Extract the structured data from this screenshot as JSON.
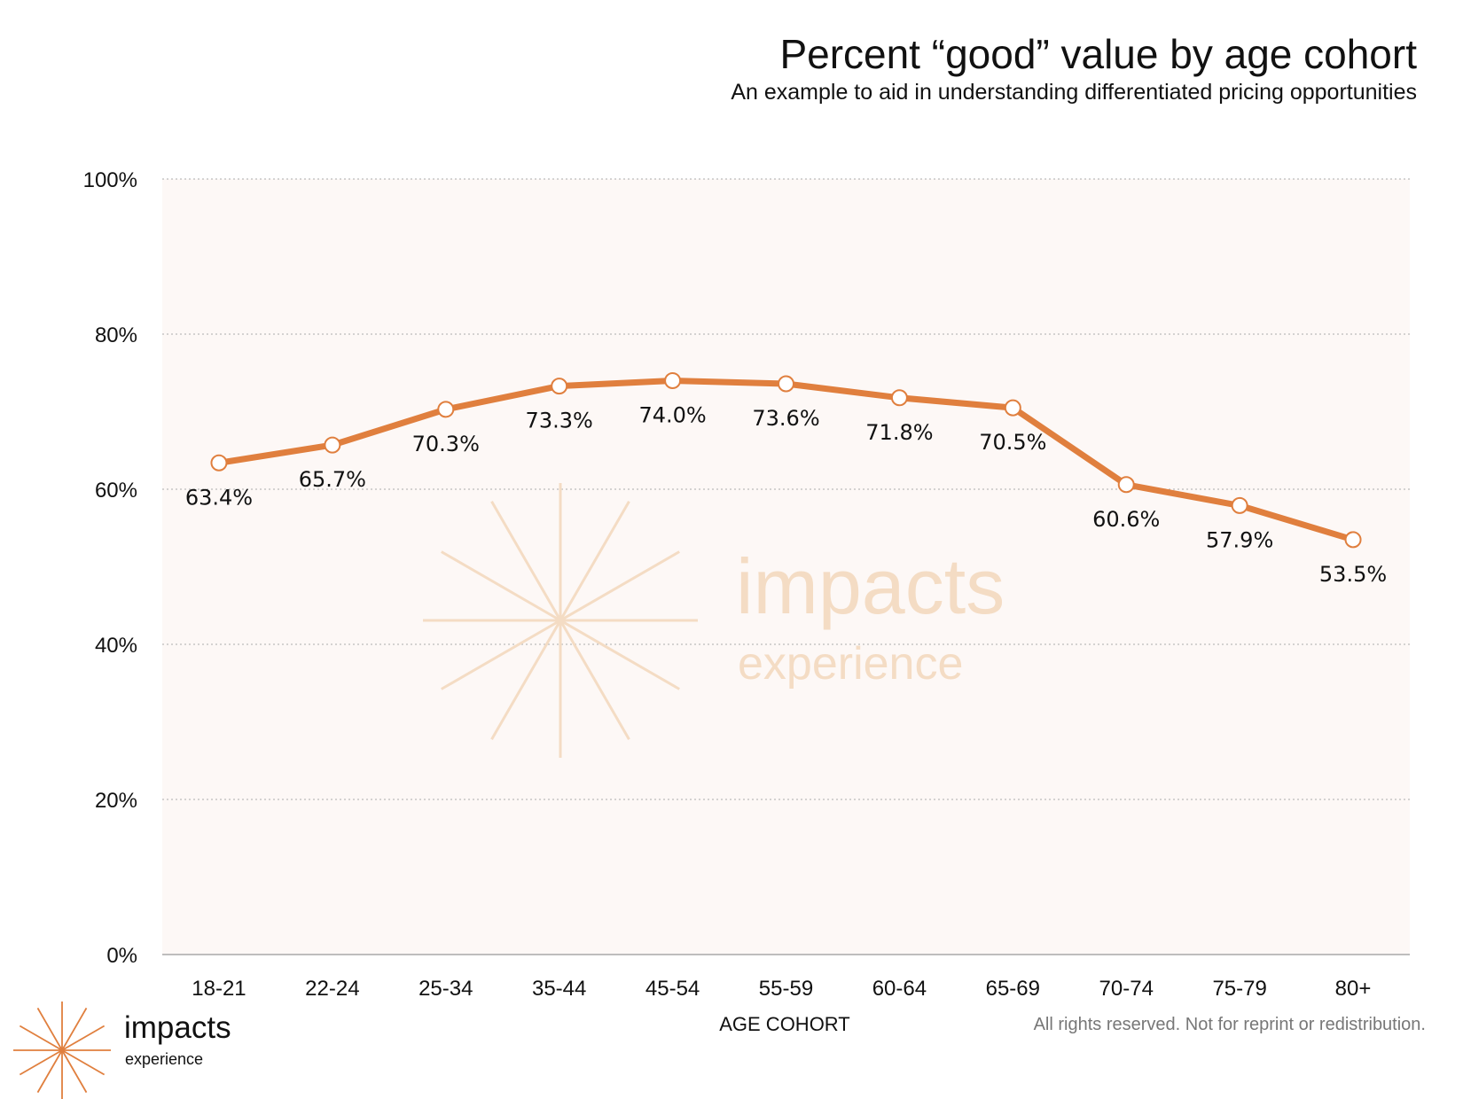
{
  "header": {
    "title": "Percent “good” value by age cohort",
    "subtitle": "An example to aid in understanding differentiated pricing opportunities"
  },
  "chart_data": {
    "type": "line",
    "title": "Percent “good” value by age cohort",
    "subtitle": "An example to aid in understanding differentiated pricing opportunities",
    "xlabel": "AGE COHORT",
    "ylabel": "",
    "categories": [
      "18-21",
      "22-24",
      "25-34",
      "35-44",
      "45-54",
      "55-59",
      "60-64",
      "65-69",
      "70-74",
      "75-79",
      "80+"
    ],
    "series": [
      {
        "values": [
          63.4,
          65.7,
          70.3,
          73.3,
          74.0,
          73.6,
          71.8,
          70.5,
          60.6,
          57.9,
          53.5
        ],
        "labels": [
          "63.4%",
          "65.7%",
          "70.3%",
          "73.3%",
          "74.0%",
          "73.6%",
          "71.8%",
          "70.5%",
          "60.6%",
          "57.9%",
          "53.5%"
        ]
      }
    ],
    "yticks": [
      "0%",
      "20%",
      "40%",
      "60%",
      "80%",
      "100%"
    ],
    "ylim": [
      0,
      100
    ],
    "grid": "horizontal dotted",
    "legend": "none",
    "colors": {
      "line": "#e07f3e",
      "marker_fill": "#ffffff",
      "plot_background": "#fdf8f6",
      "grid": "#bbbbbb",
      "watermark": "#f4dcc4"
    }
  },
  "watermark": {
    "name": "impacts",
    "sub": "experience"
  },
  "logo": {
    "name": "impacts",
    "sub": "experience",
    "icon": "starburst-icon"
  },
  "footer": {
    "note": "All rights reserved. Not for reprint or redistribution."
  }
}
